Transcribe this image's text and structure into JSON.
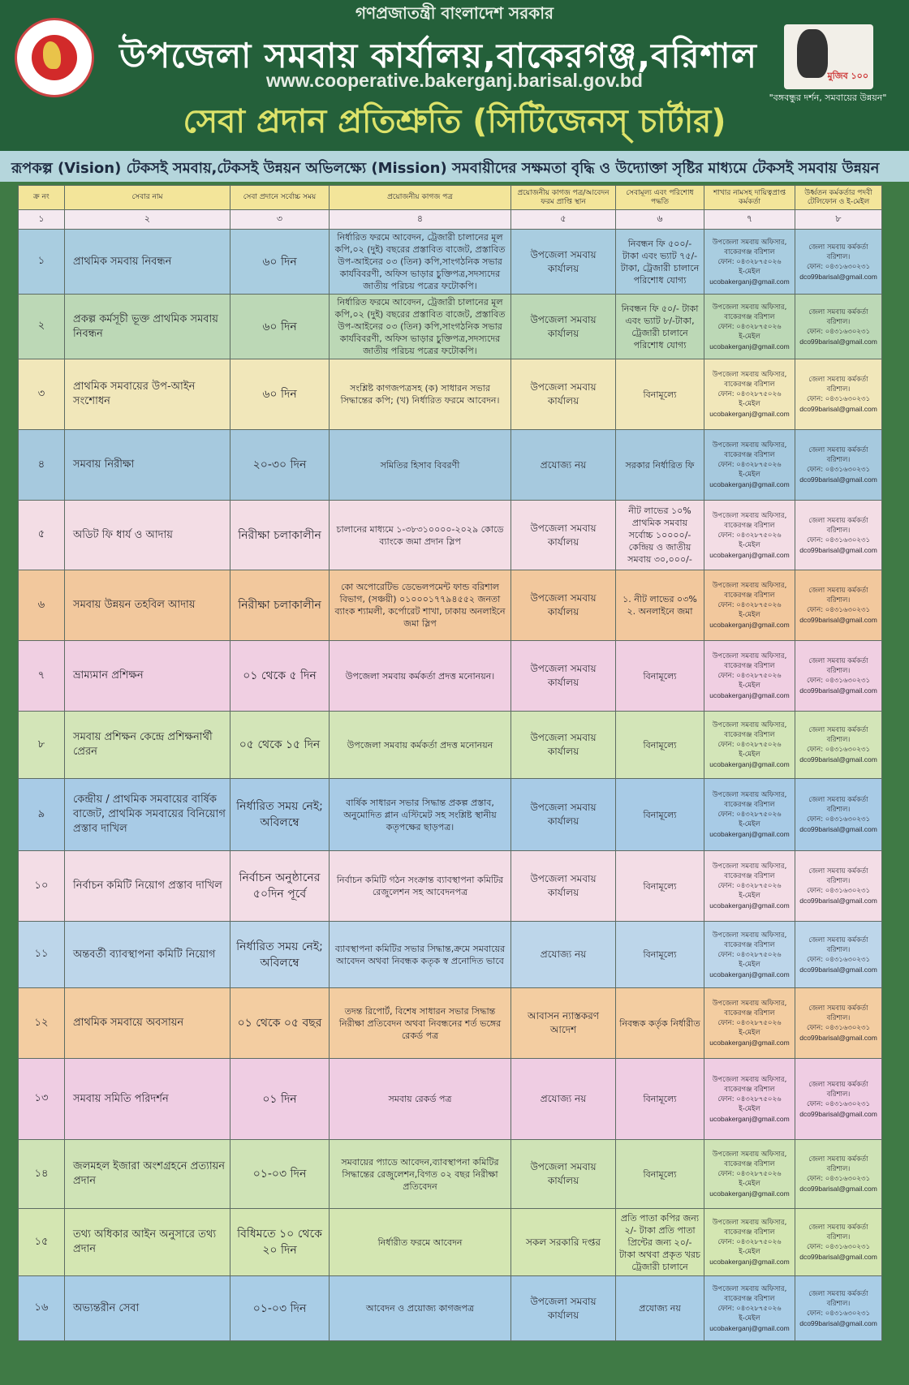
{
  "header": {
    "government": "গণপ্রজাতন্ত্রী বাংলাদেশ সরকার",
    "office": "উপজেলা সমবায় কার্যালয়,বাকেরগঞ্জ,বরিশাল",
    "website": "www.cooperative.bakerganj.barisal.gov.bd",
    "charter_title": "সেবা প্রদান প্রতিশ্রুতি (সিটিজেনস্ চার্টার)",
    "slogan": "\"বঙ্গবন্ধুর দর্শন, সমবায়ের উন্নয়ন\"",
    "mujib_badge": "মুজিব ১০০"
  },
  "vision": "রূপকল্প (Vision) টেকসই সমবায়,টেকসই উন্নয়ন অভিলক্ষ্যে (Mission) সমবায়ীদের সক্ষমতা বৃদ্ধি ও উদ্যোক্তা সৃষ্টির মাধ্যমে টেকসই সমবায় উন্নয়ন",
  "table": {
    "columns": [
      "ক্র নং",
      "সেবার নাম",
      "সেবা প্রদানে সর্বোচ্চ সময়",
      "প্রয়োজনীয় কাগজ পত্র",
      "প্রয়োজনীয় কাগজ পত্র/আবেদন ফরম প্রাপ্তি স্থান",
      "সেবামূল্য এবং পরিশোধ পদ্ধতি",
      "শাখার নামসহ দায়িত্বপ্রাপ্ত কর্মকর্তা",
      "উর্ধ্বতন কর্মকর্তার পদবী টেলিফোন ও ই-মেইল"
    ],
    "column_numbers": [
      "১",
      "২",
      "৩",
      "৪",
      "৫",
      "৬",
      "৭",
      "৮"
    ],
    "officer": {
      "title": "উপজেলা সমবায় অফিসার,",
      "place": "বাকেরগঞ্জ বরিশাল",
      "phone": "ফোন: ০৪৩২৮৭৫০২৬",
      "email_label": "ই-মেইল",
      "email": "ucobakerganj@gmail.com"
    },
    "senior": {
      "title": "জেলা সমবায় কর্মকর্তা",
      "place": "বরিশাল।",
      "phone": "ফোন: ০৪৩১৬৩০২৩১",
      "email": "dco99barisal@gmail.com"
    },
    "row_colors": [
      "#a9cde0",
      "#bcd8b6",
      "#f1e7ba",
      "#a6c9de",
      "#f3dde5",
      "#f2c89d",
      "#f0cfe2",
      "#d3e5b8",
      "#a8cbe6",
      "#f3dde6",
      "#bdd6ea",
      "#f3cda1",
      "#efcde3",
      "#cfe3b6",
      "#d4e6b2",
      "#a9cde6"
    ],
    "rows": [
      {
        "no": "১",
        "service": "প্রাথমিক সমবায় নিবন্ধন",
        "time": "৬০ দিন",
        "documents": "নির্ধারিত ফরমে আবেদন, ট্রেজারী চালানের মূল কপি,০২ (দুই) বছরের প্রস্তাবিত বাজেট, প্রস্তাবিত উপ-আইনের ০৩ (তিন) কপি,সাংগঠনিক সভার কার্যবিবরণী, অফিস ভাড়ার চুক্তিপত্র,সদস্যদের জাতীয় পরিচয় পত্রের ফটোকপি।",
        "place": "উপজেলা সমবায় কার্যালয়",
        "fee": "নিবন্ধন ফি ৫০০/- টাকা এবং ভ্যাট ৭৫/-টাকা, ট্রেজারী চালানে পরিশোধ যোগ্য"
      },
      {
        "no": "২",
        "service": "প্রকল্প কর্মসূচী ভূক্ত প্রাথমিক সমবায় নিবন্ধন",
        "time": "৬০ দিন",
        "documents": "নির্ধারিত ফরমে আবেদন, ট্রেজারী চালানের মূল কপি,০২ (দুই) বছরের প্রস্তাবিত বাজেট, প্রস্তাবিত উপ-আইনের ০৩ (তিন) কপি,সাংগঠনিক সভার কার্যবিবরণী, অফিস ভাড়ার চুক্তিপত্র,সদস্যদের জাতীয় পরিচয় পত্রের ফটোকপি।",
        "place": "উপজেলা সমবায় কার্যালয়",
        "fee": "নিবন্ধন ফি ৫০/- টাকা এবং ভ্যাট ৮/-টাকা, ট্রেজারী চালানে পরিশোধ যোগ্য"
      },
      {
        "no": "৩",
        "service": "প্রাথমিক সমবায়ের উপ-আইন সংশোধন",
        "time": "৬০ দিন",
        "documents": "সংশ্লিষ্ট কাগজপত্রসহ (ক) সাধারন সভার সিদ্ধান্তের কপি; (খ) নির্ধারিত ফরমে আবেদন।",
        "place": "উপজেলা সমবায় কার্যালয়",
        "fee": "বিনামূল্যে"
      },
      {
        "no": "৪",
        "service": "সমবায় নিরীক্ষা",
        "time": "২০-৩০ দিন",
        "documents": "সমিতির হিসাব বিবরণী",
        "place": "প্রযোজ্য নয়",
        "fee": "সরকার নির্ধারিত ফি"
      },
      {
        "no": "৫",
        "service": "অডিট ফি ধার্য ও আদায়",
        "time": "নিরীক্ষা চলাকালীন",
        "documents": "চালানের মাধ্যমে ১-৩৮৩১০০০০-২০২৯ কোডে ব্যাংকে জমা প্রদান স্লিপ",
        "place": "উপজেলা সমবায় কার্যালয়",
        "fee": "নীট লাভের ১০% প্রাথমিক সমবায় সর্বোচ্চ ১০০০০/- কেন্দ্রিয় ও জাতীয় সমবায় ৩০,০০০/-"
      },
      {
        "no": "৬",
        "service": "সমবায় উন্নয়ন তহবিল আদায়",
        "time": "নিরীক্ষা চলাকালীন",
        "documents": "কো অপোরেটিভ ডেভেলপমেন্ট ফান্ড বরিশাল বিভাগ, (সঞ্চয়ী) ০১০০০১৭৭৯৪৫৫২ জনতা ব্যাংক শ্যামলী, কর্পোরেট শাখা, ঢাকায় অনলাইনে জমা স্লিপ",
        "place": "উপজেলা সমবায় কার্যালয়",
        "fee": "১. নীট লাভের ০৩% ২. অনলাইনে জমা"
      },
      {
        "no": "৭",
        "service": "ভ্রাম্যমান প্রশিক্ষন",
        "time": "০১ থেকে ৫ দিন",
        "documents": "উপজেলা সমবায় কর্মকর্তা প্রদত্ত মনোনয়ন।",
        "place": "উপজেলা সমবায় কার্যালয়",
        "fee": "বিনামূল্যে"
      },
      {
        "no": "৮",
        "service": "সমবায় প্রশিক্ষন কেন্দ্রে প্রশিক্ষনার্থী প্রেরন",
        "time": "০৫ থেকে ১৫ দিন",
        "documents": "উপজেলা সমবায় কর্মকর্তা প্রদত্ত মনোনয়ন",
        "place": "উপজেলা সমবায় কার্যালয়",
        "fee": "বিনামূল্যে"
      },
      {
        "no": "৯",
        "service": "কেন্দ্রীয় / প্রাথমিক সমবায়ের বার্ষিক বাজেট, প্রাথমিক সমবায়ের বিনিয়োগ প্রস্তাব দাখিল",
        "time": "নির্ধারিত সময় নেই; অবিলম্বে",
        "documents": "বার্ষিক সাধারন সভার সিদ্ধান্ত প্রকল্প প্রস্তাব, অনুমোদিত প্লান এস্টিমেট সহ সংশ্লিষ্ট স্থানীয় কতৃপক্ষের ছাড়পত্র।",
        "place": "উপজেলা সমবায় কার্যালয়",
        "fee": "বিনামূল্যে"
      },
      {
        "no": "১০",
        "service": "নির্বাচন কমিটি নিয়োগ প্রস্তাব দাখিল",
        "time": "নির্বাচন অনুষ্ঠানের ৫০দিন পূর্বে",
        "documents": "নির্বাচন কমিটি গঠন সংক্রান্ত ব্যাবস্থাপনা কমিটির রেজুলেশন সহ আবেদনপত্র",
        "place": "উপজেলা সমবায় কার্যালয়",
        "fee": "বিনামূল্যে"
      },
      {
        "no": "১১",
        "service": "অন্তবর্তী ব্যাবস্থাপনা কমিটি নিয়োগ",
        "time": "নির্ধারিত সময় নেই; অবিলম্বে",
        "documents": "ব্যাবস্থাপনা কমিটির সভার সিদ্ধান্ত,ক্রমে সমবায়ের আবেদন অথবা নিবন্ধক কতৃক স্ব প্রনোদিত ভাবে",
        "place": "প্রযোজ্য নয়",
        "fee": "বিনামূল্যে"
      },
      {
        "no": "১২",
        "service": "প্রাথমিক সমবায়ে অবসায়ন",
        "time": "০১ থেকে ০৫ বছর",
        "documents": "তদন্ত রিপোর্ট, বিশেষ সাধারন সভার সিদ্ধান্ত নিরীক্ষা প্রতিবেদন অথবা নিবন্ধনের শর্ত ভঙ্গের রেকর্ড পত্র",
        "place": "আবাসন ন্যাস্তকরণ আদেশ",
        "fee": "নিবন্ধক কর্তৃক নির্ধারীত"
      },
      {
        "no": "১৩",
        "service": "সমবায় সমিতি পরিদর্শন",
        "time": "০১ দিন",
        "documents": "সমবায় রেকর্ড পত্র",
        "place": "প্রযোজ্য নয়",
        "fee": "বিনামূল্যে"
      },
      {
        "no": "১৪",
        "service": "জলমহল ইজারা অংশগ্রহনে প্রত্যায়ন প্রদান",
        "time": "০১-০৩ দিন",
        "documents": "সমবায়ের প্যাডে আবেদন,ব্যাবস্থাপনা কমিটির সিদ্ধান্তের রেজুলেশন,বিগত ০২ বছর নিরীক্ষা প্রতিবেদন",
        "place": "উপজেলা সমবায় কার্যালয়",
        "fee": "বিনামূল্যে"
      },
      {
        "no": "১৫",
        "service": "তথ্য অধিকার আইন অনুসারে তথ্য প্রদান",
        "time": "বিধিমতে ১০ থেকে ২০ দিন",
        "documents": "নির্ধারীত ফরমে আবেদন",
        "place": "সকল সরকারি দপ্তর",
        "fee": "প্রতি পাতা কপির জন্য ২/- টাকা প্রতি পাতা প্রিন্টের জন্য ২০/- টাকা অথবা প্রকৃত খরচ ট্রেজারী চালানে"
      },
      {
        "no": "১৬",
        "service": "অভ্যন্তরীন সেবা",
        "time": "০১-০৩ দিন",
        "documents": "আবেদন ও প্রয়োজ্য কাগজপত্র",
        "place": "উপজেলা সমবায় কার্যালয়",
        "fee": "প্রযোজ্য নয়"
      }
    ]
  }
}
